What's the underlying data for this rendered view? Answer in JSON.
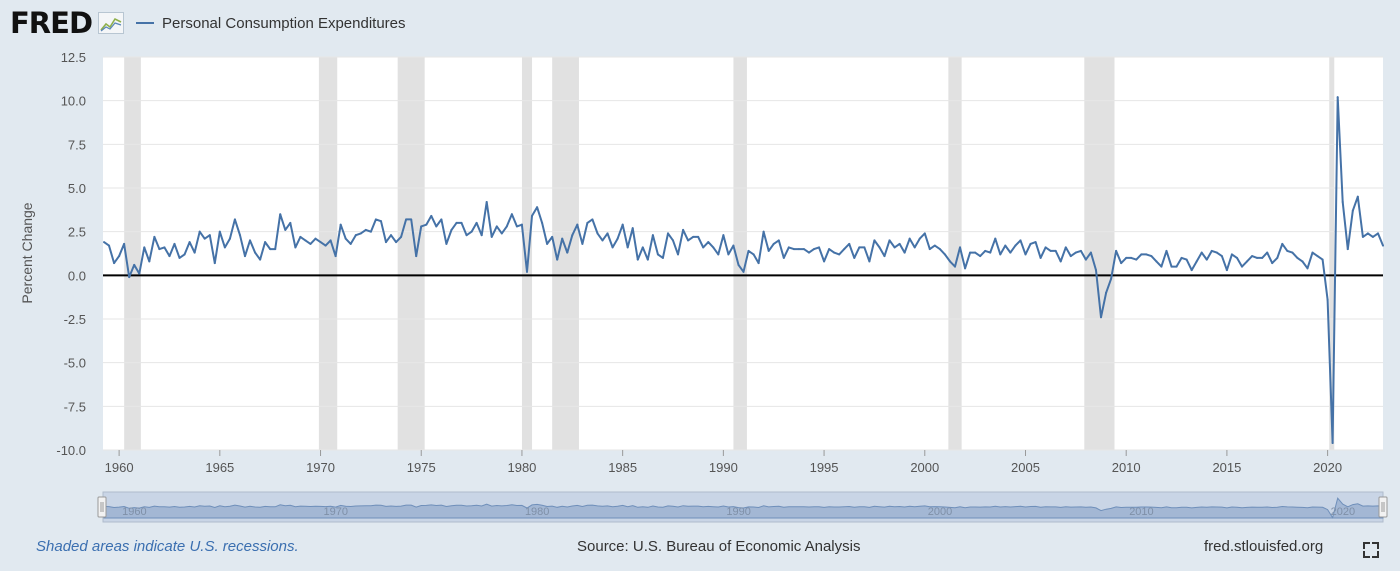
{
  "header": {
    "logo_text": "FRED",
    "series_label": "Personal Consumption Expenditures",
    "series_color": "#4572a7"
  },
  "footer": {
    "note": "Shaded areas indicate U.S. recessions.",
    "source": "Source: U.S. Bureau of Economic Analysis",
    "site": "fred.stlouisfed.org",
    "fullscreen_icon": "fullscreen-icon"
  },
  "chart_data": {
    "type": "line",
    "title": "",
    "xlabel": "",
    "ylabel": "Percent Change",
    "xlim": [
      1959.2,
      2022.75
    ],
    "ylim": [
      -10.0,
      12.5
    ],
    "yticks": [
      12.5,
      10.0,
      7.5,
      5.0,
      2.5,
      0.0,
      -2.5,
      -5.0,
      -7.5,
      -10.0
    ],
    "ytick_labels": [
      "12.5",
      "10.0",
      "7.5",
      "5.0",
      "2.5",
      "0.0",
      "-2.5",
      "-5.0",
      "-7.5",
      "-10.0"
    ],
    "xticks": [
      1960,
      1965,
      1970,
      1975,
      1980,
      1985,
      1990,
      1995,
      2000,
      2005,
      2010,
      2015,
      2020
    ],
    "xtick_labels": [
      "1960",
      "1965",
      "1970",
      "1975",
      "1980",
      "1985",
      "1990",
      "1995",
      "2000",
      "2005",
      "2010",
      "2015",
      "2020"
    ],
    "navigator_labels": [
      "1960",
      "1970",
      "1980",
      "1990",
      "2000",
      "2010",
      "2020"
    ],
    "grid": "horizontal",
    "recession_color": "#e1e1e1",
    "recessions": [
      [
        1960.25,
        1961.08
      ],
      [
        1969.92,
        1970.83
      ],
      [
        1973.83,
        1975.17
      ],
      [
        1980.0,
        1980.5
      ],
      [
        1981.5,
        1982.83
      ],
      [
        1990.5,
        1991.17
      ],
      [
        2001.17,
        2001.83
      ],
      [
        2007.92,
        2009.42
      ],
      [
        2020.08,
        2020.33
      ]
    ],
    "series": [
      {
        "name": "Personal Consumption Expenditures",
        "color": "#4572a7",
        "x": [
          1959.25,
          1959.5,
          1959.75,
          1960.0,
          1960.25,
          1960.5,
          1960.75,
          1961.0,
          1961.25,
          1961.5,
          1961.75,
          1962.0,
          1962.25,
          1962.5,
          1962.75,
          1963.0,
          1963.25,
          1963.5,
          1963.75,
          1964.0,
          1964.25,
          1964.5,
          1964.75,
          1965.0,
          1965.25,
          1965.5,
          1965.75,
          1966.0,
          1966.25,
          1966.5,
          1966.75,
          1967.0,
          1967.25,
          1967.5,
          1967.75,
          1968.0,
          1968.25,
          1968.5,
          1968.75,
          1969.0,
          1969.25,
          1969.5,
          1969.75,
          1970.0,
          1970.25,
          1970.5,
          1970.75,
          1971.0,
          1971.25,
          1971.5,
          1971.75,
          1972.0,
          1972.25,
          1972.5,
          1972.75,
          1973.0,
          1973.25,
          1973.5,
          1973.75,
          1974.0,
          1974.25,
          1974.5,
          1974.75,
          1975.0,
          1975.25,
          1975.5,
          1975.75,
          1976.0,
          1976.25,
          1976.5,
          1976.75,
          1977.0,
          1977.25,
          1977.5,
          1977.75,
          1978.0,
          1978.25,
          1978.5,
          1978.75,
          1979.0,
          1979.25,
          1979.5,
          1979.75,
          1980.0,
          1980.25,
          1980.5,
          1980.75,
          1981.0,
          1981.25,
          1981.5,
          1981.75,
          1982.0,
          1982.25,
          1982.5,
          1982.75,
          1983.0,
          1983.25,
          1983.5,
          1983.75,
          1984.0,
          1984.25,
          1984.5,
          1984.75,
          1985.0,
          1985.25,
          1985.5,
          1985.75,
          1986.0,
          1986.25,
          1986.5,
          1986.75,
          1987.0,
          1987.25,
          1987.5,
          1987.75,
          1988.0,
          1988.25,
          1988.5,
          1988.75,
          1989.0,
          1989.25,
          1989.5,
          1989.75,
          1990.0,
          1990.25,
          1990.5,
          1990.75,
          1991.0,
          1991.25,
          1991.5,
          1991.75,
          1992.0,
          1992.25,
          1992.5,
          1992.75,
          1993.0,
          1993.25,
          1993.5,
          1993.75,
          1994.0,
          1994.25,
          1994.5,
          1994.75,
          1995.0,
          1995.25,
          1995.5,
          1995.75,
          1996.0,
          1996.25,
          1996.5,
          1996.75,
          1997.0,
          1997.25,
          1997.5,
          1997.75,
          1998.0,
          1998.25,
          1998.5,
          1998.75,
          1999.0,
          1999.25,
          1999.5,
          1999.75,
          2000.0,
          2000.25,
          2000.5,
          2000.75,
          2001.0,
          2001.25,
          2001.5,
          2001.75,
          2002.0,
          2002.25,
          2002.5,
          2002.75,
          2003.0,
          2003.25,
          2003.5,
          2003.75,
          2004.0,
          2004.25,
          2004.5,
          2004.75,
          2005.0,
          2005.25,
          2005.5,
          2005.75,
          2006.0,
          2006.25,
          2006.5,
          2006.75,
          2007.0,
          2007.25,
          2007.5,
          2007.75,
          2008.0,
          2008.25,
          2008.5,
          2008.75,
          2009.0,
          2009.25,
          2009.5,
          2009.75,
          2010.0,
          2010.25,
          2010.5,
          2010.75,
          2011.0,
          2011.25,
          2011.5,
          2011.75,
          2012.0,
          2012.25,
          2012.5,
          2012.75,
          2013.0,
          2013.25,
          2013.5,
          2013.75,
          2014.0,
          2014.25,
          2014.5,
          2014.75,
          2015.0,
          2015.25,
          2015.5,
          2015.75,
          2016.0,
          2016.25,
          2016.5,
          2016.75,
          2017.0,
          2017.25,
          2017.5,
          2017.75,
          2018.0,
          2018.25,
          2018.5,
          2018.75,
          2019.0,
          2019.25,
          2019.5,
          2019.75,
          2020.0,
          2020.25,
          2020.5,
          2020.75,
          2021.0,
          2021.25,
          2021.5,
          2021.75,
          2022.0,
          2022.25,
          2022.5,
          2022.75
        ],
        "values": [
          1.9,
          1.7,
          0.7,
          1.1,
          1.8,
          -0.1,
          0.6,
          0.1,
          1.6,
          0.8,
          2.2,
          1.5,
          1.6,
          1.1,
          1.8,
          1.0,
          1.2,
          1.9,
          1.3,
          2.5,
          2.1,
          2.3,
          0.7,
          2.5,
          1.6,
          2.1,
          3.2,
          2.3,
          1.1,
          2.0,
          1.3,
          0.9,
          1.9,
          1.5,
          1.5,
          3.5,
          2.6,
          3.0,
          1.6,
          2.2,
          2.0,
          1.8,
          2.1,
          1.9,
          1.7,
          2.0,
          1.1,
          2.9,
          2.1,
          1.8,
          2.3,
          2.4,
          2.6,
          2.5,
          3.2,
          3.1,
          1.9,
          2.3,
          1.9,
          2.2,
          3.2,
          3.2,
          1.1,
          2.8,
          2.9,
          3.4,
          2.8,
          3.2,
          1.8,
          2.6,
          3.0,
          3.0,
          2.3,
          2.5,
          3.0,
          2.3,
          4.2,
          2.2,
          2.8,
          2.4,
          2.8,
          3.5,
          2.8,
          2.9,
          0.2,
          3.4,
          3.9,
          3.0,
          1.8,
          2.2,
          0.9,
          2.1,
          1.3,
          2.3,
          2.9,
          1.8,
          3.0,
          3.2,
          2.4,
          2.0,
          2.4,
          1.6,
          2.1,
          2.9,
          1.6,
          2.7,
          0.9,
          1.6,
          0.9,
          2.3,
          1.2,
          1.0,
          2.4,
          2.0,
          1.2,
          2.6,
          2.0,
          2.2,
          2.2,
          1.6,
          1.9,
          1.6,
          1.2,
          2.3,
          1.2,
          1.7,
          0.6,
          0.2,
          1.4,
          1.2,
          0.7,
          2.5,
          1.4,
          1.8,
          2.0,
          1.0,
          1.6,
          1.5,
          1.5,
          1.5,
          1.3,
          1.5,
          1.6,
          0.8,
          1.5,
          1.3,
          1.2,
          1.5,
          1.8,
          1.0,
          1.6,
          1.6,
          0.8,
          2.0,
          1.6,
          1.1,
          2.0,
          1.6,
          1.8,
          1.3,
          2.1,
          1.6,
          2.1,
          2.4,
          1.5,
          1.7,
          1.5,
          1.2,
          0.8,
          0.5,
          1.6,
          0.4,
          1.3,
          1.3,
          1.1,
          1.4,
          1.3,
          2.1,
          1.2,
          1.7,
          1.3,
          1.7,
          2.0,
          1.2,
          1.8,
          1.9,
          1.0,
          1.6,
          1.4,
          1.4,
          0.8,
          1.6,
          1.1,
          1.3,
          1.4,
          0.9,
          1.3,
          0.3,
          -2.4,
          -1.0,
          -0.2,
          1.4,
          0.7,
          1.0,
          1.0,
          0.9,
          1.2,
          1.2,
          1.1,
          0.8,
          0.5,
          1.4,
          0.5,
          0.5,
          1.0,
          0.9,
          0.3,
          0.8,
          1.3,
          0.9,
          1.4,
          1.3,
          1.1,
          0.3,
          1.2,
          1.0,
          0.5,
          0.8,
          1.1,
          1.0,
          1.0,
          1.3,
          0.7,
          1.0,
          1.8,
          1.4,
          1.3,
          1.0,
          0.8,
          0.4,
          1.3,
          1.1,
          0.9,
          -1.4,
          -9.6,
          10.2,
          4.2,
          1.5,
          3.7,
          4.5,
          2.2,
          2.4,
          2.2,
          2.4,
          1.7
        ]
      }
    ]
  }
}
